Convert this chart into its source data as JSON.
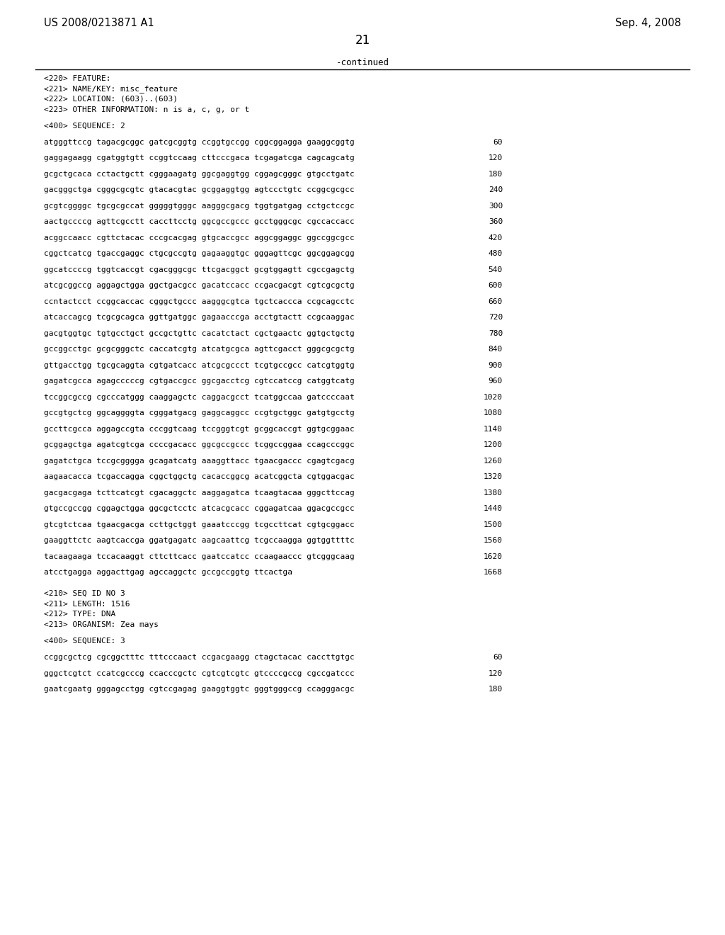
{
  "header_left": "US 2008/0213871 A1",
  "header_right": "Sep. 4, 2008",
  "page_number": "21",
  "continued_text": "-continued",
  "background_color": "#ffffff",
  "text_color": "#000000",
  "feature_block": [
    "<220> FEATURE:",
    "<221> NAME/KEY: misc_feature",
    "<222> LOCATION: (603)..(603)",
    "<223> OTHER INFORMATION: n is a, c, g, or t"
  ],
  "sequence_header": "<400> SEQUENCE: 2",
  "sequence_lines": [
    [
      "atgggttccg tagacgcggc gatcgcggtg ccggtgccgg cggcggagga gaaggcggtg",
      "60"
    ],
    [
      "gaggagaagg cgatggtgtt ccggtccaag cttcccgaca tcgagatcga cagcagcatg",
      "120"
    ],
    [
      "gcgctgcaca cctactgctt cgggaagatg ggcgaggtgg cggagcgggc gtgcctgatc",
      "180"
    ],
    [
      "gacgggctga cgggcgcgtc gtacacgtac gcggaggtgg agtccctgtc ccggcgcgcc",
      "240"
    ],
    [
      "gcgtcggggc tgcgcgccat gggggtgggc aagggcgacg tggtgatgag cctgctccgc",
      "300"
    ],
    [
      "aactgccccg agttcgcctt caccttcctg ggcgccgccc gcctgggcgc cgccaccacc",
      "360"
    ],
    [
      "acggccaacc cgttctacac cccgcacgag gtgcaccgcc aggcggaggc ggccggcgcc",
      "420"
    ],
    [
      "cggctcatcg tgaccgaggc ctgcgccgtg gagaaggtgc gggagttcgc ggcggagcgg",
      "480"
    ],
    [
      "ggcatccccg tggtcaccgt cgacgggcgc ttcgacggct gcgtggagtt cgccgagctg",
      "540"
    ],
    [
      "atcgcggccg aggagctgga ggctgacgcc gacatccacc ccgacgacgt cgtcgcgctg",
      "600"
    ],
    [
      "ccntactcct ccggcaccac cgggctgccc aagggcgtca tgctcaccca ccgcagcctc",
      "660"
    ],
    [
      "atcaccagcg tcgcgcagca ggttgatggc gagaacccga acctgtactt ccgcaaggac",
      "720"
    ],
    [
      "gacgtggtgc tgtgcctgct gccgctgttc cacatctact cgctgaactc ggtgctgctg",
      "780"
    ],
    [
      "gccggcctgc gcgcgggctc caccatcgtg atcatgcgca agttcgacct gggcgcgctg",
      "840"
    ],
    [
      "gttgacctgg tgcgcaggta cgtgatcacc atcgcgccct tcgtgccgcc catcgtggtg",
      "900"
    ],
    [
      "gagatcgcca agagcccccg cgtgaccgcc ggcgacctcg cgtccatccg catggtcatg",
      "960"
    ],
    [
      "tccggcgccg cgcccatggg caaggagctc caggacgcct tcatggccaa gatccccaat",
      "1020"
    ],
    [
      "gccgtgctcg ggcaggggta cgggatgacg gaggcaggcc ccgtgctggc gatgtgcctg",
      "1080"
    ],
    [
      "gccttcgcca aggagccgta cccggtcaag tccgggtcgt gcggcaccgt ggtgcggaac",
      "1140"
    ],
    [
      "gcggagctga agatcgtcga ccccgacacc ggcgccgccc tcggccggaa ccagcccggc",
      "1200"
    ],
    [
      "gagatctgca tccgcgggga gcagatcatg aaaggttacc tgaacgaccc cgagtcgacg",
      "1260"
    ],
    [
      "aagaacacca tcgaccagga cggctggctg cacaccggcg acatcggcta cgtggacgac",
      "1320"
    ],
    [
      "gacgacgaga tcttcatcgt cgacaggctc aaggagatca tcaagtacaa gggcttccag",
      "1380"
    ],
    [
      "gtgccgccgg cggagctgga ggcgctcctc atcacgcacc cggagatcaa ggacgccgcc",
      "1440"
    ],
    [
      "gtcgtctcaa tgaacgacga ccttgctggt gaaatcccgg tcgccttcat cgtgcggacc",
      "1500"
    ],
    [
      "gaaggttctc aagtcaccga ggatgagatc aagcaattcg tcgccaagga ggtggttttc",
      "1560"
    ],
    [
      "tacaagaaga tccacaaggt cttcttcacc gaatccatcc ccaagaaccc gtcgggcaag",
      "1620"
    ],
    [
      "atcctgagga aggacttgag agccaggctc gccgccggtg ttcactga",
      "1668"
    ]
  ],
  "seq3_header_lines": [
    "<210> SEQ ID NO 3",
    "<211> LENGTH: 1516",
    "<212> TYPE: DNA",
    "<213> ORGANISM: Zea mays"
  ],
  "seq3_sequence_header": "<400> SEQUENCE: 3",
  "seq3_lines": [
    [
      "ccggcgctcg cgcggctttc tttcccaact ccgacgaagg ctagctacac caccttgtgc",
      "60"
    ],
    [
      "gggctcgtct ccatcgcccg ccacccgctc cgtcgtcgtc gtccccgccg cgccgatccc",
      "120"
    ],
    [
      "gaatcgaatg gggagcctgg cgtccgagag gaaggtggtc gggtgggccg ccagggacgc",
      "180"
    ]
  ],
  "mono_fontsize": 8.0,
  "header_fontsize": 10.5,
  "pagenum_fontsize": 12
}
